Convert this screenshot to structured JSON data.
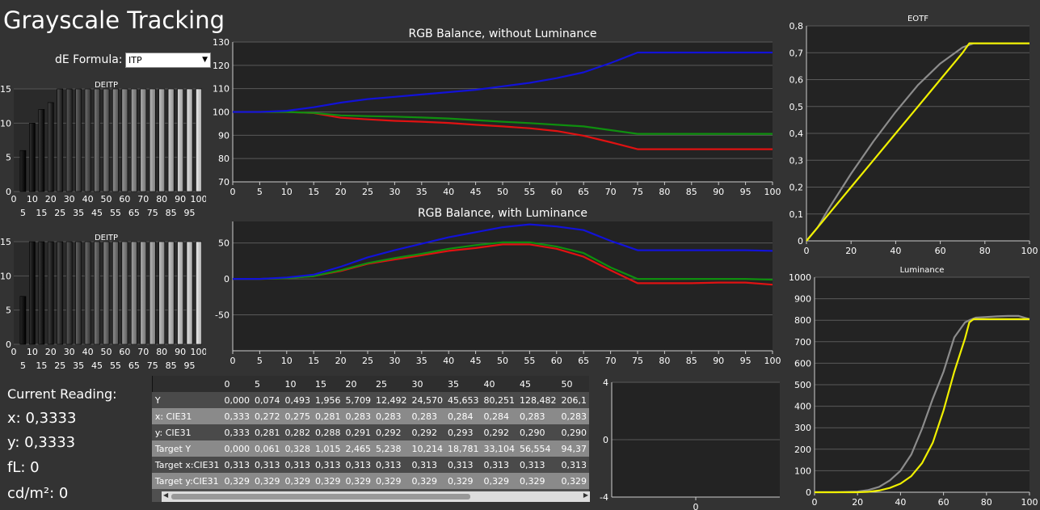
{
  "page_title": "Grayscale Tracking",
  "de_formula": {
    "label": "dE Formula:",
    "value": "ITP"
  },
  "current_reading": {
    "title": "Current Reading:",
    "x": "x: 0,3333",
    "y": "y: 0,3333",
    "fl": "fL: 0",
    "cdm2": "cd/m²: 0"
  },
  "colors": {
    "red": "#e01212",
    "green": "#0f8f0f",
    "blue": "#1212d8",
    "yellow": "#f0f000",
    "gray_ref": "#8c8c8c",
    "bg": "#333333",
    "plot_bg": "#232323",
    "grid": "#5a5a5a"
  },
  "chart_data": [
    {
      "id": "deitp1",
      "type": "bar",
      "title": "DEITP",
      "x": [
        0,
        5,
        10,
        15,
        20,
        25,
        30,
        35,
        40,
        45,
        50,
        55,
        60,
        65,
        70,
        75,
        80,
        85,
        90,
        95,
        100
      ],
      "values": [
        0,
        6,
        10,
        12,
        13,
        15,
        15,
        15,
        15,
        15,
        15,
        15,
        15,
        15,
        15,
        15,
        15,
        15,
        15,
        15,
        15
      ],
      "ylim": [
        0,
        15
      ],
      "yticks": [
        0,
        5,
        10,
        15
      ],
      "xticks_top": [
        "0",
        "10",
        "20",
        "30",
        "40",
        "50",
        "60",
        "70",
        "80",
        "90",
        "100"
      ],
      "xticks_bottom": [
        "5",
        "15",
        "25",
        "35",
        "45",
        "55",
        "65",
        "75",
        "85",
        "95"
      ]
    },
    {
      "id": "deitp2",
      "type": "bar",
      "title": "DEITP",
      "x": [
        0,
        5,
        10,
        15,
        20,
        25,
        30,
        35,
        40,
        45,
        50,
        55,
        60,
        65,
        70,
        75,
        80,
        85,
        90,
        95,
        100
      ],
      "values": [
        0,
        7,
        15,
        15,
        15,
        15,
        15,
        15,
        15,
        15,
        15,
        15,
        15,
        15,
        15,
        15,
        15,
        15,
        15,
        15,
        15
      ],
      "ylim": [
        0,
        15
      ],
      "yticks": [
        0,
        5,
        10,
        15
      ],
      "xticks_top": [
        "0",
        "10",
        "20",
        "30",
        "40",
        "50",
        "60",
        "70",
        "80",
        "90",
        "100"
      ],
      "xticks_bottom": [
        "5",
        "15",
        "25",
        "35",
        "45",
        "55",
        "65",
        "75",
        "85",
        "95"
      ]
    },
    {
      "id": "rgb1",
      "type": "line",
      "title": "RGB Balance, without Luminance",
      "x": [
        0,
        5,
        10,
        15,
        20,
        25,
        30,
        35,
        40,
        45,
        50,
        55,
        60,
        65,
        70,
        75,
        80,
        85,
        90,
        95,
        100
      ],
      "xlim": [
        0,
        100
      ],
      "ylim": [
        70,
        130
      ],
      "yticks": [
        70,
        80,
        90,
        100,
        110,
        120,
        130
      ],
      "xticks": [
        0,
        5,
        10,
        15,
        20,
        25,
        30,
        35,
        40,
        45,
        50,
        55,
        60,
        65,
        70,
        75,
        80,
        85,
        90,
        95,
        100
      ],
      "series": [
        {
          "color": "red",
          "values": [
            100,
            100,
            100,
            99.5,
            97.5,
            96.8,
            96.2,
            95.8,
            95.3,
            94.5,
            93.8,
            93,
            91.8,
            89.8,
            87,
            84,
            84,
            84,
            84,
            84,
            84
          ]
        },
        {
          "color": "green",
          "values": [
            100,
            100,
            100,
            99.6,
            98.5,
            98.2,
            98,
            97.6,
            97.2,
            96.5,
            95.8,
            95.2,
            94.5,
            93.8,
            92.2,
            90.6,
            90.6,
            90.6,
            90.6,
            90.6,
            90.6
          ]
        },
        {
          "color": "blue",
          "values": [
            100,
            100,
            100.5,
            102,
            104,
            105.5,
            106.5,
            107.5,
            108.5,
            109.5,
            111,
            112.5,
            114.5,
            117,
            121,
            125.5,
            125.5,
            125.5,
            125.5,
            125.5,
            125.5
          ]
        }
      ]
    },
    {
      "id": "rgb2",
      "type": "line",
      "title": "RGB Balance, with Luminance",
      "x": [
        0,
        5,
        10,
        15,
        20,
        25,
        30,
        35,
        40,
        45,
        50,
        55,
        60,
        65,
        70,
        75,
        80,
        85,
        90,
        95,
        100
      ],
      "xlim": [
        0,
        100
      ],
      "ylim": [
        -100,
        80
      ],
      "yticks": [
        -50,
        0,
        50
      ],
      "xticks": [
        0,
        5,
        10,
        15,
        20,
        25,
        30,
        35,
        40,
        45,
        50,
        55,
        60,
        65,
        70,
        75,
        80,
        85,
        90,
        95,
        100
      ],
      "series": [
        {
          "color": "red",
          "values": [
            0,
            0,
            1,
            4,
            11,
            21,
            27,
            33,
            39,
            43,
            48,
            48,
            42,
            31,
            12,
            -6,
            -6,
            -6,
            -5,
            -5,
            -8
          ]
        },
        {
          "color": "green",
          "values": [
            0,
            0,
            1,
            4,
            12,
            22,
            29,
            35,
            42,
            47,
            51,
            51,
            45,
            36,
            16,
            0,
            0,
            0,
            0,
            0,
            -1
          ]
        },
        {
          "color": "blue",
          "values": [
            0,
            0,
            2,
            6,
            17,
            30,
            40,
            49,
            58,
            65,
            72,
            76,
            73,
            68,
            53,
            40,
            40,
            40,
            40,
            40,
            39
          ]
        }
      ]
    },
    {
      "id": "eotf",
      "type": "line",
      "title": "EOTF",
      "xlim": [
        0,
        100
      ],
      "ylim": [
        0,
        0.8
      ],
      "yticks": [
        "0",
        "0,1",
        "0,2",
        "0,3",
        "0,4",
        "0,5",
        "0,6",
        "0,7",
        "0,8"
      ],
      "xticks": [
        0,
        20,
        40,
        60,
        80,
        100
      ],
      "series": [
        {
          "color": "gray_ref",
          "x": [
            0,
            5,
            10,
            20,
            30,
            40,
            50,
            60,
            70,
            75,
            80,
            90,
            100
          ],
          "values": [
            0,
            0.05,
            0.12,
            0.25,
            0.37,
            0.48,
            0.58,
            0.66,
            0.72,
            0.735,
            0.735,
            0.735,
            0.735
          ]
        },
        {
          "color": "yellow",
          "x": [
            0,
            5,
            10,
            20,
            30,
            40,
            50,
            60,
            70,
            73,
            75,
            80,
            90,
            100
          ],
          "values": [
            0,
            0.05,
            0.1,
            0.2,
            0.3,
            0.4,
            0.5,
            0.6,
            0.7,
            0.735,
            0.735,
            0.735,
            0.735,
            0.735
          ]
        }
      ]
    },
    {
      "id": "luminance",
      "type": "line",
      "title": "Luminance",
      "xlim": [
        0,
        100
      ],
      "ylim": [
        0,
        1000
      ],
      "yticks": [
        0,
        100,
        200,
        300,
        400,
        500,
        600,
        700,
        800,
        900,
        1000
      ],
      "xticks": [
        0,
        20,
        40,
        60,
        80,
        100
      ],
      "series": [
        {
          "color": "gray_ref",
          "x": [
            0,
            10,
            20,
            25,
            30,
            35,
            40,
            45,
            50,
            55,
            60,
            65,
            70,
            72,
            75,
            80,
            85,
            90,
            95,
            100
          ],
          "values": [
            0,
            0,
            3,
            10,
            25,
            55,
            100,
            175,
            295,
            435,
            560,
            720,
            790,
            800,
            812,
            815,
            818,
            820,
            820,
            805
          ]
        },
        {
          "color": "yellow",
          "x": [
            0,
            10,
            20,
            25,
            30,
            35,
            40,
            45,
            50,
            55,
            60,
            65,
            70,
            72,
            74,
            75,
            80,
            85,
            90,
            95,
            100
          ],
          "values": [
            0,
            0,
            0,
            2,
            8,
            20,
            40,
            75,
            135,
            230,
            380,
            560,
            715,
            790,
            805,
            805,
            805,
            805,
            805,
            805,
            805
          ]
        }
      ]
    },
    {
      "id": "small",
      "type": "line",
      "title": "",
      "xlim": [
        -1,
        1
      ],
      "ylim": [
        -4,
        4
      ],
      "yticks": [
        -4,
        0,
        4
      ],
      "xticks": [
        0
      ],
      "series": []
    }
  ],
  "table": {
    "columns": [
      "0",
      "5",
      "10",
      "15",
      "20",
      "25",
      "30",
      "35",
      "40",
      "45",
      "50"
    ],
    "rows": [
      {
        "label": "Y",
        "values": [
          "0,000",
          "0,074",
          "0,493",
          "1,956",
          "5,709",
          "12,492",
          "24,570",
          "45,653",
          "80,251",
          "128,482",
          "206,1"
        ]
      },
      {
        "label": "x: CIE31",
        "values": [
          "0,333",
          "0,272",
          "0,275",
          "0,281",
          "0,283",
          "0,283",
          "0,283",
          "0,284",
          "0,284",
          "0,283",
          "0,283"
        ]
      },
      {
        "label": "y: CIE31",
        "values": [
          "0,333",
          "0,281",
          "0,282",
          "0,288",
          "0,291",
          "0,292",
          "0,292",
          "0,293",
          "0,292",
          "0,290",
          "0,290"
        ]
      },
      {
        "label": "Target Y",
        "values": [
          "0,000",
          "0,061",
          "0,328",
          "1,015",
          "2,465",
          "5,238",
          "10,214",
          "18,781",
          "33,104",
          "56,554",
          "94,37"
        ]
      },
      {
        "label": "Target x:CIE31",
        "values": [
          "0,313",
          "0,313",
          "0,313",
          "0,313",
          "0,313",
          "0,313",
          "0,313",
          "0,313",
          "0,313",
          "0,313",
          "0,313"
        ]
      },
      {
        "label": "Target y:CIE31",
        "values": [
          "0,329",
          "0,329",
          "0,329",
          "0,329",
          "0,329",
          "0,329",
          "0,329",
          "0,329",
          "0,329",
          "0,329",
          "0,329"
        ]
      }
    ]
  }
}
